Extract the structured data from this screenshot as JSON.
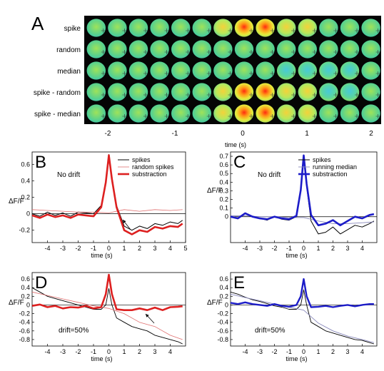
{
  "panel_a": {
    "letter": "A",
    "row_labels": [
      "spike",
      "random",
      "median",
      "spike - random",
      "spike - median"
    ],
    "x_ticks": [
      "-2",
      "-1",
      "0",
      "1",
      "2"
    ],
    "xlabel": "time (s)"
  },
  "chart_data": [
    {
      "panel": "B",
      "type": "line",
      "annotation": "No drift",
      "xlabel": "time (s)",
      "ylabel": "ΔF/F",
      "xlim": [
        -5,
        5
      ],
      "ylim": [
        -0.35,
        0.75
      ],
      "x_ticks": [
        -4,
        -3,
        -2,
        -1,
        0,
        1,
        2,
        3,
        4,
        5
      ],
      "y_ticks": [
        -0.2,
        0,
        0.2,
        0.4,
        0.6
      ],
      "legend": "top-right",
      "series": [
        {
          "name": "spikes",
          "color": "#000000",
          "x": [
            -5,
            -4.5,
            -4,
            -3.5,
            -3,
            -2.5,
            -2,
            -1.5,
            -1,
            -0.5,
            -0.2,
            0,
            0.2,
            0.5,
            1,
            1.5,
            2,
            2.5,
            3,
            3.5,
            4,
            4.5,
            4.8
          ],
          "y": [
            0,
            -0.03,
            0.02,
            -0.02,
            0.01,
            -0.03,
            0.02,
            0.01,
            0,
            0.1,
            0.4,
            0.72,
            0.45,
            0.1,
            -0.15,
            -0.2,
            -0.15,
            -0.18,
            -0.12,
            -0.14,
            -0.1,
            -0.12,
            -0.08
          ]
        },
        {
          "name": "random spikes",
          "color": "#e07070",
          "x": [
            -5,
            -4,
            -3,
            -2,
            -1,
            0,
            1,
            2,
            3,
            4,
            4.8
          ],
          "y": [
            0.05,
            0.04,
            0.03,
            0.02,
            0.02,
            0.01,
            0.05,
            0.03,
            0.05,
            0.04,
            0.05
          ]
        },
        {
          "name": "substraction",
          "color": "#dd2020",
          "x": [
            -5,
            -4.5,
            -4,
            -3.5,
            -3,
            -2.5,
            -2,
            -1.5,
            -1,
            -0.5,
            -0.2,
            0,
            0.2,
            0.5,
            1,
            1.5,
            2,
            2.5,
            3,
            3.5,
            4,
            4.5,
            4.8
          ],
          "y": [
            -0.02,
            -0.05,
            -0.01,
            -0.04,
            -0.02,
            -0.05,
            -0.01,
            -0.02,
            -0.03,
            0.08,
            0.38,
            0.71,
            0.42,
            0.08,
            -0.2,
            -0.25,
            -0.2,
            -0.22,
            -0.16,
            -0.18,
            -0.15,
            -0.16,
            -0.12
          ]
        }
      ]
    },
    {
      "panel": "C",
      "type": "line",
      "annotation": "No drift",
      "xlabel": "time (s)",
      "ylabel": "ΔF/F",
      "xlim": [
        -5,
        5
      ],
      "ylim": [
        -0.3,
        0.75
      ],
      "x_ticks": [
        -4,
        -3,
        -2,
        -1,
        0,
        1,
        2,
        3,
        4
      ],
      "y_ticks": [
        0,
        0.1,
        0.2,
        0.3,
        0.4,
        0.5,
        0.6,
        0.7
      ],
      "legend": "top-right",
      "series": [
        {
          "name": "spikes",
          "color": "#000000",
          "x": [
            -5,
            -4.5,
            -4,
            -3.5,
            -3,
            -2.5,
            -2,
            -1.5,
            -1,
            -0.5,
            -0.2,
            0,
            0.2,
            0.5,
            1,
            1.5,
            2,
            2.5,
            3,
            3.5,
            4,
            4.5,
            4.8
          ],
          "y": [
            0,
            -0.02,
            0.04,
            0,
            -0.02,
            -0.04,
            0,
            -0.03,
            -0.04,
            0,
            0.3,
            0.7,
            0.35,
            -0.05,
            -0.2,
            -0.18,
            -0.12,
            -0.2,
            -0.15,
            -0.1,
            -0.12,
            -0.08,
            -0.05
          ]
        },
        {
          "name": "running median",
          "color": "#8888bb",
          "x": [
            -5,
            -4,
            -3,
            -2,
            -1,
            0,
            1,
            2,
            3,
            4,
            4.8
          ],
          "y": [
            0.01,
            0.01,
            0.0,
            0.0,
            -0.01,
            -0.01,
            -0.05,
            -0.08,
            -0.08,
            -0.07,
            -0.06
          ]
        },
        {
          "name": "substraction",
          "color": "#1c1cc8",
          "x": [
            -5,
            -4.5,
            -4,
            -3.5,
            -3,
            -2.5,
            -2,
            -1.5,
            -1,
            -0.5,
            -0.2,
            0,
            0.2,
            0.5,
            1,
            1.5,
            2,
            2.5,
            3,
            3.5,
            4,
            4.5,
            4.8
          ],
          "y": [
            0.0,
            -0.02,
            0.04,
            0.0,
            -0.02,
            -0.03,
            0.0,
            -0.02,
            -0.03,
            0.01,
            0.31,
            0.71,
            0.38,
            0.02,
            -0.1,
            -0.08,
            -0.04,
            -0.1,
            -0.05,
            0.0,
            -0.02,
            0.02,
            0.03
          ]
        }
      ]
    },
    {
      "panel": "D",
      "type": "line",
      "annotation": "drift=50%",
      "xlabel": "time (s)",
      "ylabel": "ΔF/F",
      "xlim": [
        -5,
        5
      ],
      "ylim": [
        -0.95,
        0.75
      ],
      "x_ticks": [
        -4,
        -3,
        -2,
        -1,
        0,
        1,
        2,
        3,
        4
      ],
      "y_ticks": [
        -0.8,
        -0.6,
        -0.4,
        -0.2,
        0,
        0.2,
        0.4,
        0.6
      ],
      "series": [
        {
          "name": "spikes",
          "color": "#000000",
          "x": [
            -5,
            -4.5,
            -4,
            -3.5,
            -3,
            -2.5,
            -2,
            -1.5,
            -1,
            -0.5,
            -0.2,
            0,
            0.2,
            0.5,
            1,
            1.5,
            2,
            2.5,
            3,
            3.5,
            4,
            4.5,
            4.8
          ],
          "y": [
            0.4,
            0.3,
            0.2,
            0.15,
            0.1,
            0.05,
            0.0,
            -0.05,
            -0.1,
            -0.1,
            0.0,
            0.38,
            0.0,
            -0.3,
            -0.4,
            -0.5,
            -0.55,
            -0.6,
            -0.7,
            -0.75,
            -0.8,
            -0.85,
            -0.9
          ]
        },
        {
          "name": "random spikes",
          "color": "#e07070",
          "x": [
            -5,
            -4,
            -3,
            -2,
            -1,
            0,
            1,
            2,
            3,
            4,
            4.8
          ],
          "y": [
            0.3,
            0.22,
            0.14,
            0.06,
            -0.02,
            -0.08,
            -0.2,
            -0.4,
            -0.5,
            -0.7,
            -0.8
          ]
        },
        {
          "name": "substraction",
          "color": "#dd2020",
          "x": [
            -5,
            -4.5,
            -4,
            -3.5,
            -3,
            -2.5,
            -2,
            -1.5,
            -1,
            -0.5,
            -0.2,
            0,
            0.2,
            0.5,
            1,
            1.5,
            2,
            2.5,
            3,
            3.5,
            4,
            4.5,
            4.8
          ],
          "y": [
            -0.02,
            0.01,
            -0.05,
            -0.02,
            -0.08,
            -0.05,
            -0.06,
            -0.02,
            -0.08,
            -0.05,
            0.25,
            0.7,
            0.25,
            -0.1,
            -0.12,
            -0.12,
            -0.08,
            -0.12,
            -0.06,
            -0.12,
            -0.05,
            -0.04,
            -0.03
          ]
        }
      ]
    },
    {
      "panel": "E",
      "type": "line",
      "annotation": "drift=50%",
      "xlabel": "time (s)",
      "ylabel": "ΔF/F",
      "xlim": [
        -5,
        5
      ],
      "ylim": [
        -0.95,
        0.75
      ],
      "x_ticks": [
        -4,
        -3,
        -2,
        -1,
        0,
        1,
        2,
        3,
        4
      ],
      "y_ticks": [
        -0.8,
        -0.6,
        -0.4,
        -0.2,
        0,
        0.2,
        0.4,
        0.6
      ],
      "series": [
        {
          "name": "spikes",
          "color": "#000000",
          "x": [
            -5,
            -4.5,
            -4,
            -3.5,
            -3,
            -2.5,
            -2,
            -1.5,
            -1,
            -0.5,
            -0.2,
            0,
            0.2,
            0.5,
            1,
            1.5,
            2,
            2.5,
            3,
            3.5,
            4,
            4.5,
            4.8
          ],
          "y": [
            0.3,
            0.25,
            0.18,
            0.12,
            0.08,
            0.03,
            -0.02,
            -0.05,
            -0.1,
            -0.1,
            0.0,
            0.35,
            0.0,
            -0.4,
            -0.5,
            -0.6,
            -0.65,
            -0.7,
            -0.75,
            -0.8,
            -0.82,
            -0.87,
            -0.9
          ]
        },
        {
          "name": "running median",
          "color": "#8888bb",
          "x": [
            -5,
            -4,
            -3,
            -2,
            -1,
            0,
            1,
            2,
            3,
            4,
            4.8
          ],
          "y": [
            0.25,
            0.17,
            0.1,
            0.02,
            -0.05,
            -0.12,
            -0.42,
            -0.6,
            -0.72,
            -0.8,
            -0.87
          ]
        },
        {
          "name": "substraction",
          "color": "#1c1cc8",
          "x": [
            -5,
            -4.5,
            -4,
            -3.5,
            -3,
            -2.5,
            -2,
            -1.5,
            -1,
            -0.5,
            -0.2,
            0,
            0.2,
            0.5,
            1,
            1.5,
            2,
            2.5,
            3,
            3.5,
            4,
            4.5,
            4.8
          ],
          "y": [
            0.05,
            0.02,
            0.06,
            0.02,
            0.0,
            -0.02,
            0.02,
            -0.02,
            -0.04,
            0.0,
            0.2,
            0.6,
            0.2,
            -0.05,
            -0.04,
            -0.02,
            -0.05,
            -0.02,
            0.0,
            -0.03,
            0.0,
            0.02,
            0.02
          ]
        }
      ]
    }
  ]
}
